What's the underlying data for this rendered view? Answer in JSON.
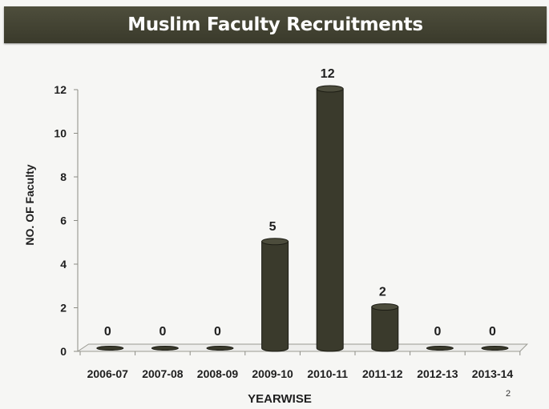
{
  "slide": {
    "title": "Muslim Faculty Recruitments",
    "page_number": "2"
  },
  "chart_data": {
    "type": "bar",
    "title": "Muslim Faculty Recruitments",
    "xlabel": "YEARWISE",
    "ylabel": "NO. OF Faculty",
    "categories": [
      "2006-07",
      "2007-08",
      "2008-09",
      "2009-10",
      "2010-11",
      "2011-12",
      "2012-13",
      "2013-14"
    ],
    "series": [
      {
        "values": [
          0,
          0,
          0,
          5,
          12,
          2,
          0,
          0
        ]
      }
    ],
    "ylim": [
      0,
      12
    ],
    "yticks": [
      0,
      2,
      4,
      6,
      8,
      10,
      12
    ],
    "data_labels": true,
    "grid": false,
    "bar_color": "#3a3a2c",
    "floor_color": "#eeeeec"
  }
}
